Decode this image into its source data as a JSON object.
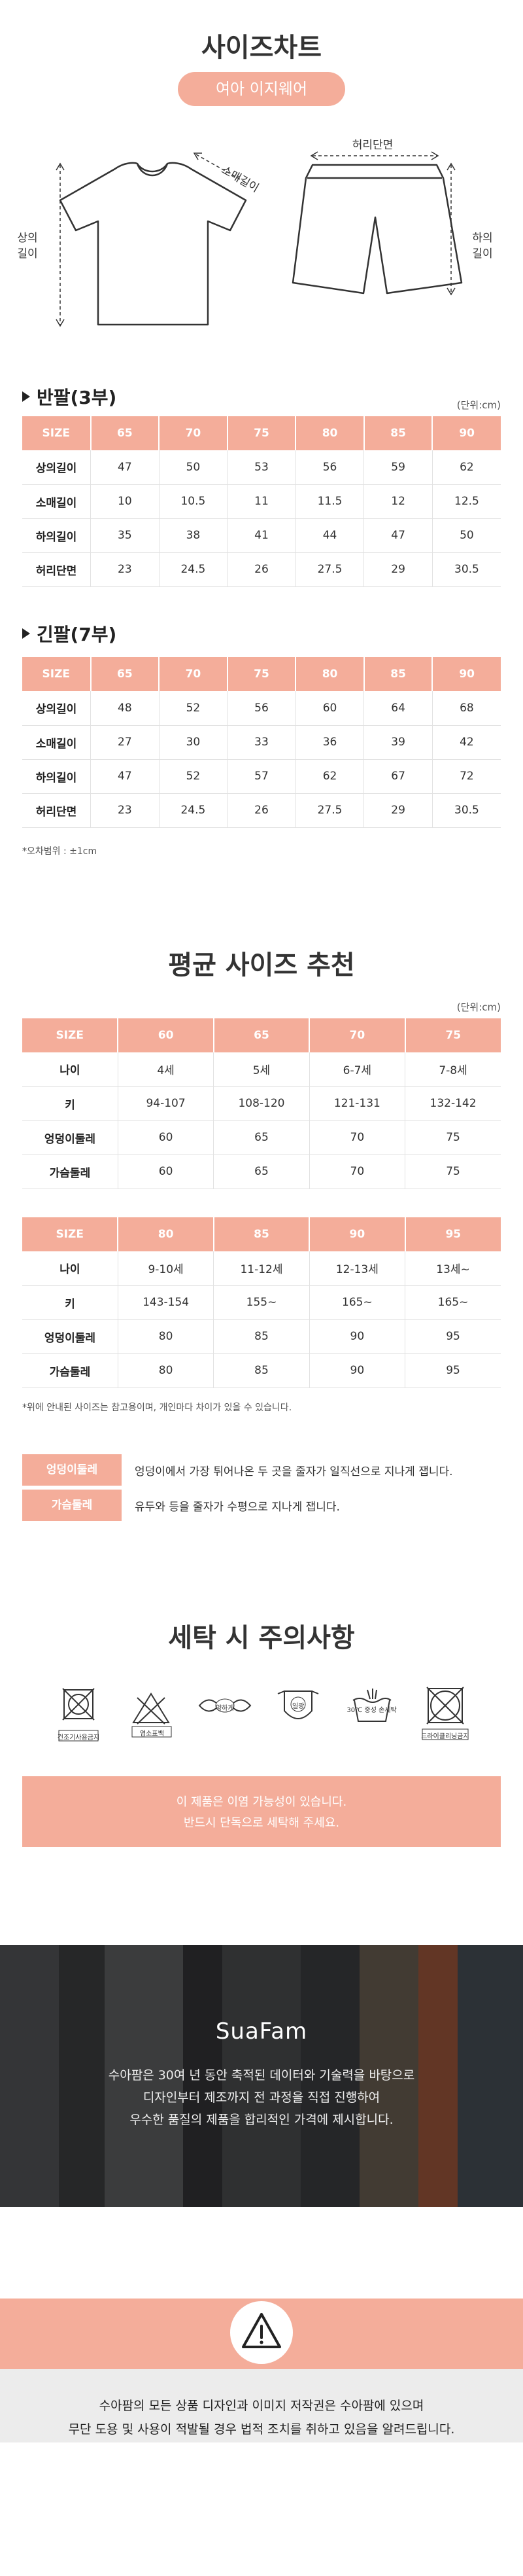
{
  "size_chart": {
    "title": "사이즈차트",
    "subtitle": "여아 이지웨어",
    "labels": {
      "sleeve": "소매길이",
      "top_length": [
        "상의",
        "길이"
      ],
      "waist": "허리단면",
      "bottom_length": [
        "하의",
        "길이"
      ]
    },
    "unit": "(단위:cm)",
    "short": {
      "heading": "반팔(3부)",
      "headers": [
        "SIZE",
        "65",
        "70",
        "75",
        "80",
        "85",
        "90"
      ],
      "rows": [
        [
          "상의길이",
          "47",
          "50",
          "53",
          "56",
          "59",
          "62"
        ],
        [
          "소매길이",
          "10",
          "10.5",
          "11",
          "11.5",
          "12",
          "12.5"
        ],
        [
          "하의길이",
          "35",
          "38",
          "41",
          "44",
          "47",
          "50"
        ],
        [
          "허리단면",
          "23",
          "24.5",
          "26",
          "27.5",
          "29",
          "30.5"
        ]
      ]
    },
    "long": {
      "heading": "긴팔(7부)",
      "headers": [
        "SIZE",
        "65",
        "70",
        "75",
        "80",
        "85",
        "90"
      ],
      "rows": [
        [
          "상의길이",
          "48",
          "52",
          "56",
          "60",
          "64",
          "68"
        ],
        [
          "소매길이",
          "27",
          "30",
          "33",
          "36",
          "39",
          "42"
        ],
        [
          "하의길이",
          "47",
          "52",
          "57",
          "62",
          "67",
          "72"
        ],
        [
          "허리단면",
          "23",
          "24.5",
          "26",
          "27.5",
          "29",
          "30.5"
        ]
      ]
    },
    "error_note": "*오차범위 : ±1cm"
  },
  "recommend": {
    "title": "평균 사이즈 추천",
    "unit": "(단위:cm)",
    "table1": {
      "headers": [
        "SIZE",
        "60",
        "65",
        "70",
        "75"
      ],
      "rows": [
        [
          "나이",
          "4세",
          "5세",
          "6-7세",
          "7-8세"
        ],
        [
          "키",
          "94-107",
          "108-120",
          "121-131",
          "132-142"
        ],
        [
          "엉덩이둘레",
          "60",
          "65",
          "70",
          "75"
        ],
        [
          "가슴둘레",
          "60",
          "65",
          "70",
          "75"
        ]
      ]
    },
    "table2": {
      "headers": [
        "SIZE",
        "80",
        "85",
        "90",
        "95"
      ],
      "rows": [
        [
          "나이",
          "9-10세",
          "11-12세",
          "12-13세",
          "13세~"
        ],
        [
          "키",
          "143-154",
          "155~",
          "165~",
          "165~"
        ],
        [
          "엉덩이둘레",
          "80",
          "85",
          "90",
          "95"
        ],
        [
          "가슴둘레",
          "80",
          "85",
          "90",
          "95"
        ]
      ]
    },
    "note": "*위에 안내된 사이즈는 참고용이며, 개인마다 차이가 있을 수 있습니다.",
    "definitions": [
      {
        "term": "엉덩이둘레",
        "desc": "엉덩이에서 가장 튀어나온 두 곳을 줄자가 일직선으로 지나게 잽니다."
      },
      {
        "term": "가슴둘레",
        "desc": "유두와 등을 줄자가 수평으로 지나게 잽니다."
      }
    ]
  },
  "care": {
    "title": "세탁 시 주의사항",
    "icons": [
      {
        "icon": "no-dryer-icon",
        "caption": "건조기사용금지"
      },
      {
        "icon": "no-bleach-icon",
        "caption": "염소표백"
      },
      {
        "icon": "no-wring-icon",
        "caption": "약하게"
      },
      {
        "icon": "shade-dry-icon",
        "caption": "일광"
      },
      {
        "icon": "hand-wash-icon",
        "caption": "30℃ 중성 손세탁"
      },
      {
        "icon": "no-dry-clean-icon",
        "caption": "드라이클리닝금지"
      }
    ],
    "notice": [
      "이 제품은 이염 가능성이 있습니다.",
      "반드시 단독으로 세탁해 주세요."
    ]
  },
  "brand": {
    "name": "SuaFam",
    "lines": [
      "수아팜은 30여 년 동안 축적된 데이터와 기술력을 바탕으로",
      "디자인부터 제조까지 전 과정을 직접 진행하여",
      "우수한 품질의 제품을 합리적인 가격에 제시합니다."
    ]
  },
  "copyright": {
    "lines": [
      "수아팜의 모든 상품 디자인과 이미지 저작권은 수아팜에 있으며",
      "무단 도용 및 사용이 적발될 경우 법적 조치를 취하고 있음을 알려드립니다."
    ]
  },
  "colors": {
    "accent": "#f4ad9a",
    "text": "#333333",
    "dark_band": "#2b2b2b",
    "light_band": "#ececec"
  }
}
